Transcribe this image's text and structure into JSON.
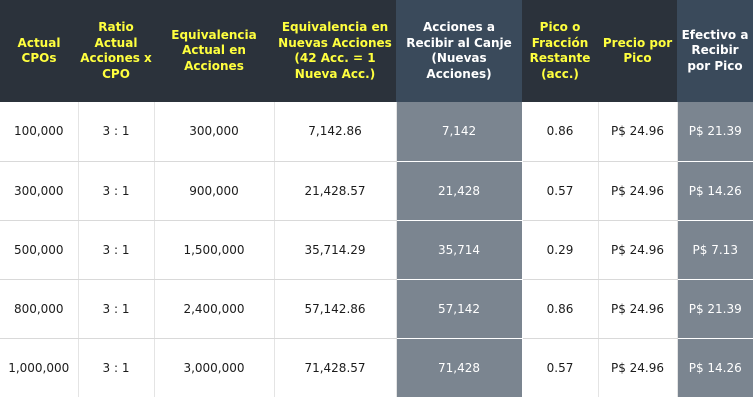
{
  "headers": [
    "Actual CPOs",
    "Ratio Actual Acciones x CPO",
    "Equivalencia Actual en Acciones",
    "Equivalencia  en Nuevas Acciones (42 Acc. = 1 Nueva Acc.)",
    "Acciones a Recibir al Canje (Nuevas Acciones)",
    "Pico o Fracción Restante (acc.)",
    "Precio por Pico",
    "Efectivo a Recibir por Pico"
  ],
  "rows": [
    [
      "100,000",
      "3 : 1",
      "300,000",
      "7,142.86",
      "7,142",
      "0.86",
      "P$ 24.96",
      "P$ 21.39"
    ],
    [
      "300,000",
      "3 : 1",
      "900,000",
      "21,428.57",
      "21,428",
      "0.57",
      "P$ 24.96",
      "P$ 14.26"
    ],
    [
      "500,000",
      "3 : 1",
      "1,500,000",
      "35,714.29",
      "35,714",
      "0.29",
      "P$ 24.96",
      "P$ 7.13"
    ],
    [
      "800,000",
      "3 : 1",
      "2,400,000",
      "57,142.86",
      "57,142",
      "0.86",
      "P$ 24.96",
      "P$ 21.39"
    ],
    [
      "1,000,000",
      "3 : 1",
      "3,000,000",
      "71,428.57",
      "71,428",
      "0.57",
      "P$ 24.96",
      "P$ 14.26"
    ]
  ],
  "colors": {
    "header_bg": "#2b323b",
    "header_text": "#ffff3e",
    "highlight_bg": "#7b8590"
  }
}
